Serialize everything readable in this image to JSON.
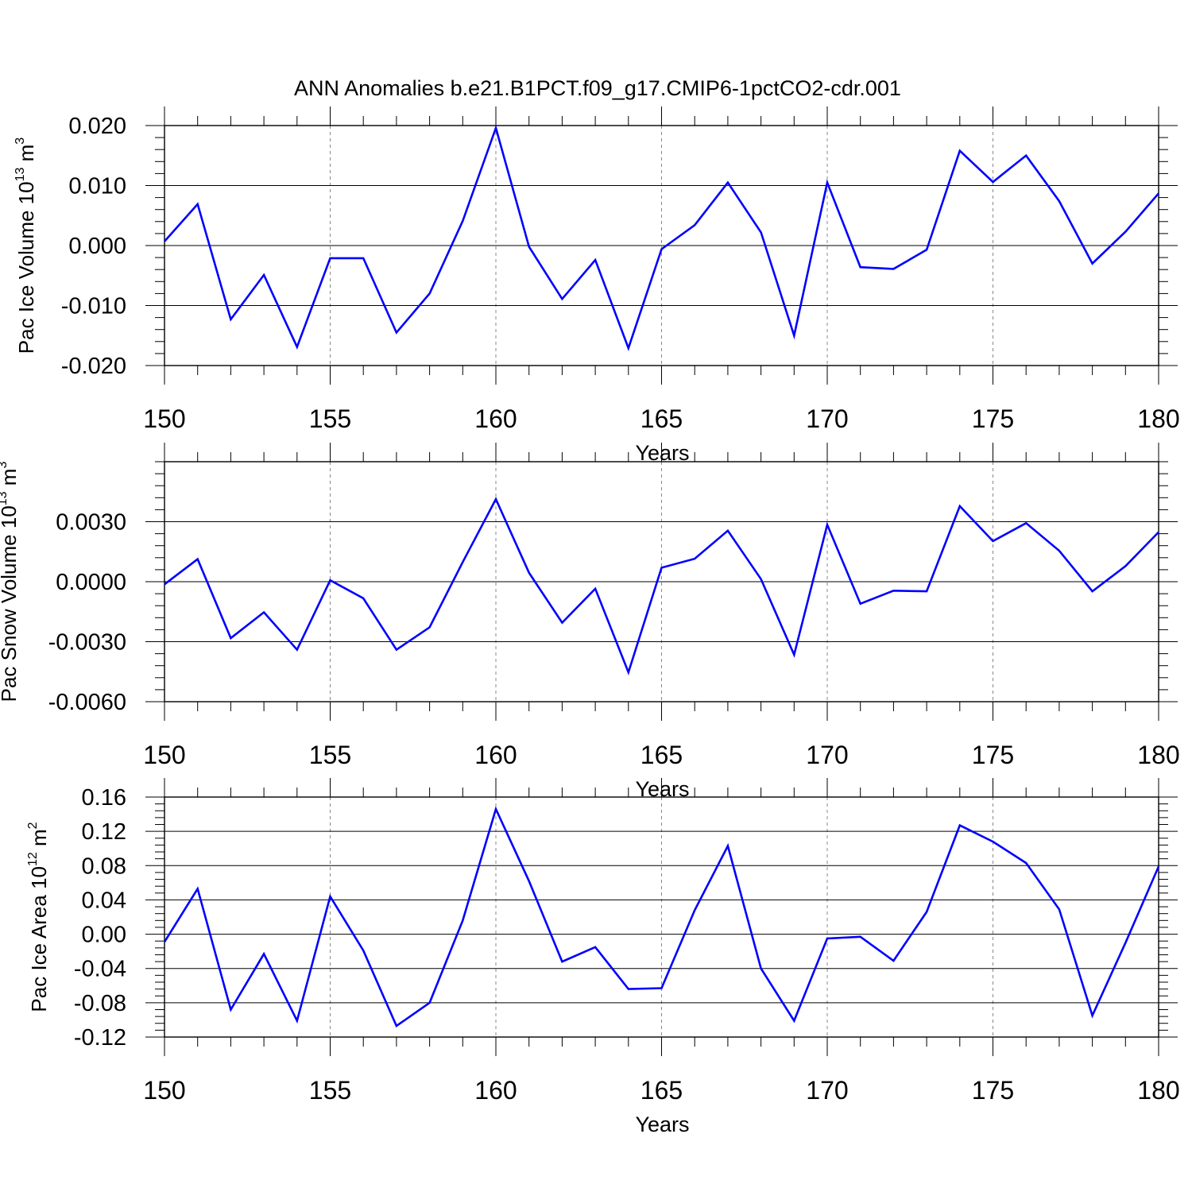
{
  "title": "ANN Anomalies b.e21.B1PCT.f09_g17.CMIP6-1pctCO2-cdr.001",
  "line_color": "#0000ff",
  "chart_data": [
    {
      "type": "line",
      "xlabel": "Years",
      "ylabel": {
        "text": "Pac Ice Volume 10",
        "exp": "13",
        "unit": " m",
        "unit_exp": "3"
      },
      "xlim": [
        150,
        180
      ],
      "ylim": [
        -0.02,
        0.02
      ],
      "xticks": [
        150,
        155,
        160,
        165,
        170,
        175,
        180
      ],
      "xtick_labels": [
        "150",
        "155",
        "160",
        "165",
        "170",
        "175",
        "180"
      ],
      "yticks": [
        -0.02,
        -0.01,
        0.0,
        0.01,
        0.02
      ],
      "ytick_labels": [
        "-0.020",
        "-0.010",
        "0.000",
        "0.010",
        "0.020"
      ],
      "grid": "vertical dashed at major x ticks",
      "x": [
        150,
        151,
        152,
        153,
        154,
        155,
        156,
        157,
        158,
        159,
        160,
        161,
        162,
        163,
        164,
        165,
        166,
        167,
        168,
        169,
        170,
        171,
        172,
        173,
        174,
        175,
        176,
        177,
        178,
        179,
        180
      ],
      "values": [
        0.0007,
        0.0069,
        -0.0123,
        -0.0049,
        -0.0169,
        -0.0021,
        -0.0021,
        -0.0145,
        -0.008,
        0.0041,
        0.0196,
        -0.0002,
        -0.0089,
        -0.0024,
        -0.0171,
        -0.0006,
        0.0034,
        0.0105,
        0.0022,
        -0.015,
        0.0105,
        -0.0036,
        -0.0039,
        -0.0007,
        0.0158,
        0.0106,
        0.015,
        0.0074,
        -0.003,
        0.0023,
        0.0087
      ]
    },
    {
      "type": "line",
      "xlabel": "Years",
      "ylabel": {
        "text": "Pac Snow Volume 10",
        "exp": "13",
        "unit": " m",
        "unit_exp": "3"
      },
      "xlim": [
        150,
        180
      ],
      "ylim": [
        -0.006,
        0.006
      ],
      "xticks": [
        150,
        155,
        160,
        165,
        170,
        175,
        180
      ],
      "xtick_labels": [
        "150",
        "155",
        "160",
        "165",
        "170",
        "175",
        "180"
      ],
      "yticks": [
        -0.006,
        -0.003,
        0.0,
        0.003
      ],
      "ytick_labels": [
        "-0.0060",
        "-0.0030",
        "0.0000",
        "0.0030"
      ],
      "grid": "vertical dashed at major x ticks",
      "x": [
        150,
        151,
        152,
        153,
        154,
        155,
        156,
        157,
        158,
        159,
        160,
        161,
        162,
        163,
        164,
        165,
        166,
        167,
        168,
        169,
        170,
        171,
        172,
        173,
        174,
        175,
        176,
        177,
        178,
        179,
        180
      ],
      "values": [
        -0.00013,
        0.00113,
        -0.00282,
        -0.00153,
        -0.0034,
        7e-05,
        -0.00083,
        -0.0034,
        -0.00228,
        0.00098,
        0.00413,
        0.00045,
        -0.00205,
        -0.00035,
        -0.00453,
        0.0007,
        0.00115,
        0.00255,
        0.00013,
        -0.00365,
        0.00285,
        -0.0011,
        -0.00045,
        -0.00048,
        0.00378,
        0.00203,
        0.00293,
        0.00155,
        -0.00048,
        0.00078,
        0.00248
      ]
    },
    {
      "type": "line",
      "xlabel": "Years",
      "ylabel": {
        "text": "Pac Ice Area 10",
        "exp": "12",
        "unit": " m",
        "unit_exp": "2"
      },
      "xlim": [
        150,
        180
      ],
      "ylim": [
        -0.12,
        0.16
      ],
      "xticks": [
        150,
        155,
        160,
        165,
        170,
        175,
        180
      ],
      "xtick_labels": [
        "150",
        "155",
        "160",
        "165",
        "170",
        "175",
        "180"
      ],
      "yticks": [
        -0.12,
        -0.08,
        -0.04,
        0.0,
        0.04,
        0.08,
        0.12,
        0.16
      ],
      "ytick_labels": [
        "-0.12",
        "-0.08",
        "-0.04",
        "0.00",
        "0.04",
        "0.08",
        "0.12",
        "0.16"
      ],
      "grid": "vertical dashed at major x ticks",
      "x": [
        150,
        151,
        152,
        153,
        154,
        155,
        156,
        157,
        158,
        159,
        160,
        161,
        162,
        163,
        164,
        165,
        166,
        167,
        168,
        169,
        170,
        171,
        172,
        173,
        174,
        175,
        176,
        177,
        178,
        179,
        180
      ],
      "values": [
        -0.009,
        0.053,
        -0.088,
        -0.023,
        -0.101,
        0.044,
        -0.019,
        -0.107,
        -0.08,
        0.016,
        0.146,
        0.062,
        -0.032,
        -0.015,
        -0.064,
        -0.063,
        0.028,
        0.103,
        -0.04,
        -0.101,
        -0.005,
        -0.003,
        -0.031,
        0.026,
        0.127,
        0.108,
        0.083,
        0.029,
        -0.095,
        -0.01,
        0.079
      ]
    }
  ]
}
